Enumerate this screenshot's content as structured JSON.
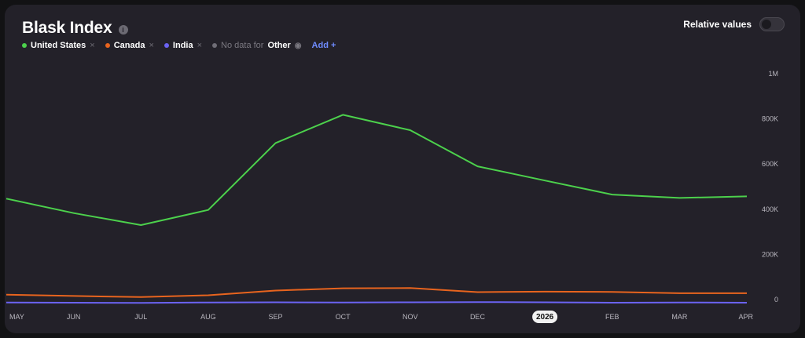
{
  "header": {
    "title": "Blask Index",
    "info_icon": "info-icon",
    "relative_values_label": "Relative values",
    "relative_values_on": false
  },
  "legend": {
    "items": [
      {
        "name": "United States",
        "color": "#4cd14c"
      },
      {
        "name": "Canada",
        "color": "#e8641e"
      },
      {
        "name": "India",
        "color": "#6b63f2"
      }
    ],
    "no_data_prefix": "No data for",
    "no_data_series": "Other",
    "remove_glyph": "×",
    "add_label": "Add +"
  },
  "chart_data": {
    "type": "line",
    "categories": [
      "MAY",
      "JUN",
      "JUL",
      "AUG",
      "SEP",
      "OCT",
      "NOV",
      "DEC",
      "2026",
      "FEB",
      "MAR",
      "APR"
    ],
    "highlight_category": "2026",
    "y_ticks": [
      "0",
      "200K",
      "400K",
      "600K",
      "800K",
      "1M"
    ],
    "y_tick_values": [
      0,
      200000,
      400000,
      600000,
      800000,
      1000000
    ],
    "ylim": [
      0,
      1000000
    ],
    "grid": false,
    "series": [
      {
        "name": "United States",
        "color": "#4cd14c",
        "values": [
          447000,
          383000,
          330000,
          397000,
          693000,
          818000,
          750000,
          590000,
          527000,
          465000,
          450000,
          457000
        ]
      },
      {
        "name": "Canada",
        "color": "#e8641e",
        "values": [
          22000,
          16000,
          11000,
          19000,
          40000,
          50000,
          51000,
          33000,
          35000,
          34000,
          28000,
          28000
        ]
      },
      {
        "name": "India",
        "color": "#6b63f2",
        "values": [
          -13000,
          -14000,
          -15000,
          -13000,
          -12000,
          -13000,
          -12000,
          -11000,
          -12000,
          -14000,
          -13000,
          -14000
        ]
      }
    ]
  }
}
